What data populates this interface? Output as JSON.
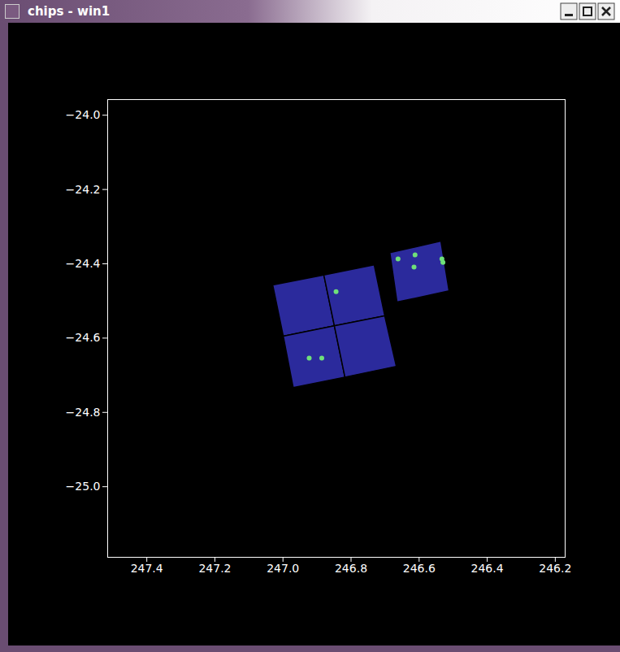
{
  "window": {
    "title": "chips - win1"
  },
  "chart_data": {
    "type": "image",
    "xlim": [
      247.515,
      246.171
    ],
    "ylim": [
      -25.19,
      -23.958
    ],
    "xticks": [
      247.4,
      247.2,
      247,
      246.8,
      246.6,
      246.4,
      246.2
    ],
    "yticks": [
      -24,
      -24.2,
      -24.4,
      -24.6,
      -24.8,
      -25
    ],
    "regions": {
      "color": "#2b2a9c",
      "polygons": [
        [
          [
            247.03,
            -24.457
          ],
          [
            246.88,
            -24.43
          ],
          [
            246.849,
            -24.567
          ],
          [
            246.999,
            -24.595
          ]
        ],
        [
          [
            246.88,
            -24.43
          ],
          [
            246.732,
            -24.403
          ],
          [
            246.701,
            -24.54
          ],
          [
            246.849,
            -24.567
          ]
        ],
        [
          [
            246.999,
            -24.595
          ],
          [
            246.849,
            -24.567
          ],
          [
            246.818,
            -24.705
          ],
          [
            246.97,
            -24.733
          ]
        ],
        [
          [
            246.849,
            -24.567
          ],
          [
            246.701,
            -24.54
          ],
          [
            246.667,
            -24.676
          ],
          [
            246.818,
            -24.705
          ]
        ],
        [
          [
            246.686,
            -24.37
          ],
          [
            246.536,
            -24.339
          ],
          [
            246.512,
            -24.473
          ],
          [
            246.665,
            -24.503
          ]
        ]
      ]
    },
    "sources": {
      "color": "#6fe07a",
      "x": [
        246.662,
        246.612,
        246.615,
        246.533,
        246.53,
        246.844,
        246.923,
        246.886
      ],
      "y": [
        -24.387,
        -24.376,
        -24.409,
        -24.387,
        -24.396,
        -24.475,
        -24.654,
        -24.654
      ]
    }
  }
}
